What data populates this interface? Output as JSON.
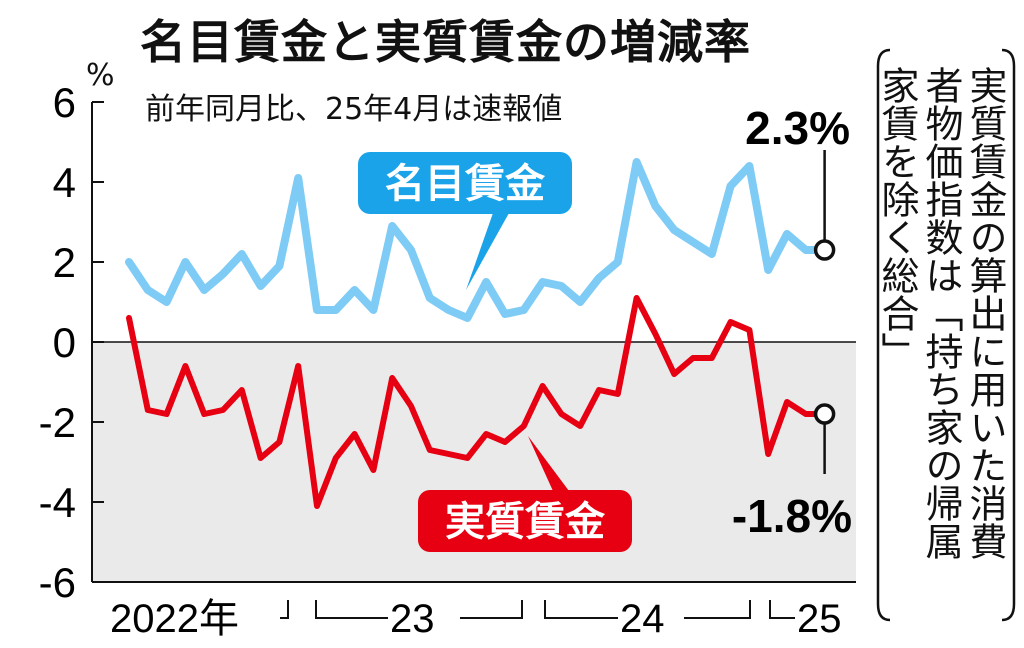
{
  "chart_data": {
    "type": "line",
    "title": "名目賃金と実質賃金の増減率",
    "subtitle": "前年同月比、25年4月は速報値",
    "ylabel": "%",
    "ylim": [
      -6,
      6
    ],
    "yticks": [
      "6",
      "4",
      "2",
      "0",
      "-2",
      "-4",
      "-6"
    ],
    "x_labels": [
      "2022年",
      "23",
      "24",
      "25"
    ],
    "series": [
      {
        "name": "名目賃金",
        "color": "#7ecbf5",
        "tag_color": "#1aa3e8",
        "end_label": "2.3%",
        "values": [
          2.0,
          1.3,
          1.0,
          2.0,
          1.3,
          1.7,
          2.2,
          1.4,
          1.9,
          4.1,
          0.8,
          0.8,
          1.3,
          0.8,
          2.9,
          2.3,
          1.1,
          0.8,
          0.6,
          1.5,
          0.7,
          0.8,
          1.5,
          1.4,
          1.0,
          1.6,
          2.0,
          4.5,
          3.4,
          2.8,
          2.5,
          2.2,
          3.9,
          4.4,
          1.8,
          2.7,
          2.3,
          2.3
        ]
      },
      {
        "name": "実質賃金",
        "color": "#e60012",
        "tag_color": "#e60012",
        "end_label": "-1.8%",
        "values": [
          0.6,
          -1.7,
          -1.8,
          -0.6,
          -1.8,
          -1.7,
          -1.2,
          -2.9,
          -2.5,
          -0.6,
          -4.1,
          -2.9,
          -2.3,
          -3.2,
          -0.9,
          -1.6,
          -2.7,
          -2.8,
          -2.9,
          -2.3,
          -2.5,
          -2.1,
          -1.1,
          -1.8,
          -2.1,
          -1.2,
          -1.3,
          1.1,
          0.2,
          -0.8,
          -0.4,
          -0.4,
          0.5,
          0.3,
          -2.8,
          -1.5,
          -1.8,
          -1.8
        ]
      }
    ]
  },
  "note": [
    "実質賃金の算出に用いた消費",
    "者物価指数は「持ち家の帰属",
    "家賃を除く総合」"
  ]
}
